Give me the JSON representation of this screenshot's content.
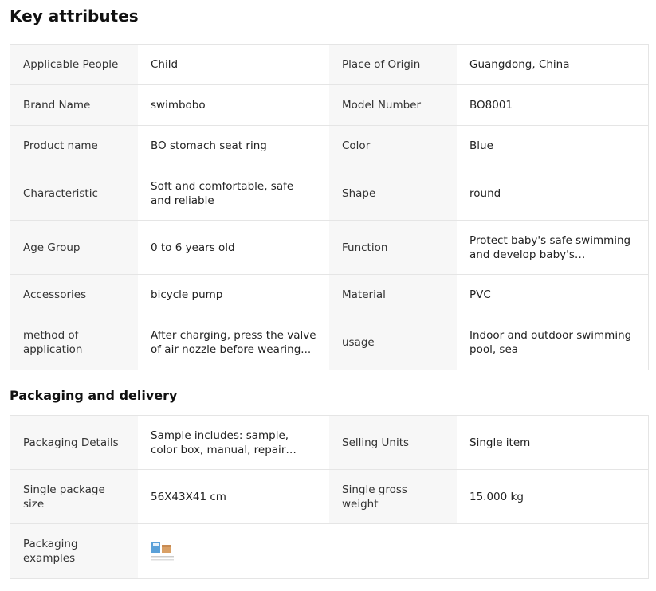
{
  "sections": [
    {
      "title": "Key attributes",
      "rows": [
        [
          "Applicable People",
          "Child",
          "Place of Origin",
          "Guangdong, China"
        ],
        [
          "Brand Name",
          "swimbobo",
          "Model Number",
          "BO8001"
        ],
        [
          "Product name",
          "BO stomach seat ring",
          "Color",
          "Blue"
        ],
        [
          "Characteristic",
          "Soft and comfortable, safe and reliable",
          "Shape",
          "round"
        ],
        [
          "Age Group",
          "0 to 6 years old",
          "Function",
          "Protect baby's safe swimming and develop baby's swimmin..."
        ],
        [
          "Accessories",
          "bicycle pump",
          "Material",
          "PVC"
        ],
        [
          "method of application",
          "After charging, press the valve of air nozzle before wearing...",
          "usage",
          "Indoor and outdoor swimming pool, sea"
        ]
      ]
    },
    {
      "title": "Packaging and delivery",
      "rows": [
        [
          "Packaging Details",
          "Sample includes: sample, color box, manual, repair subsidy,...",
          "Selling Units",
          "Single item"
        ],
        [
          "Single package size",
          "56X43X41 cm",
          "Single gross weight",
          "15.000 kg"
        ],
        [
          "Packaging examples"
        ]
      ]
    }
  ]
}
